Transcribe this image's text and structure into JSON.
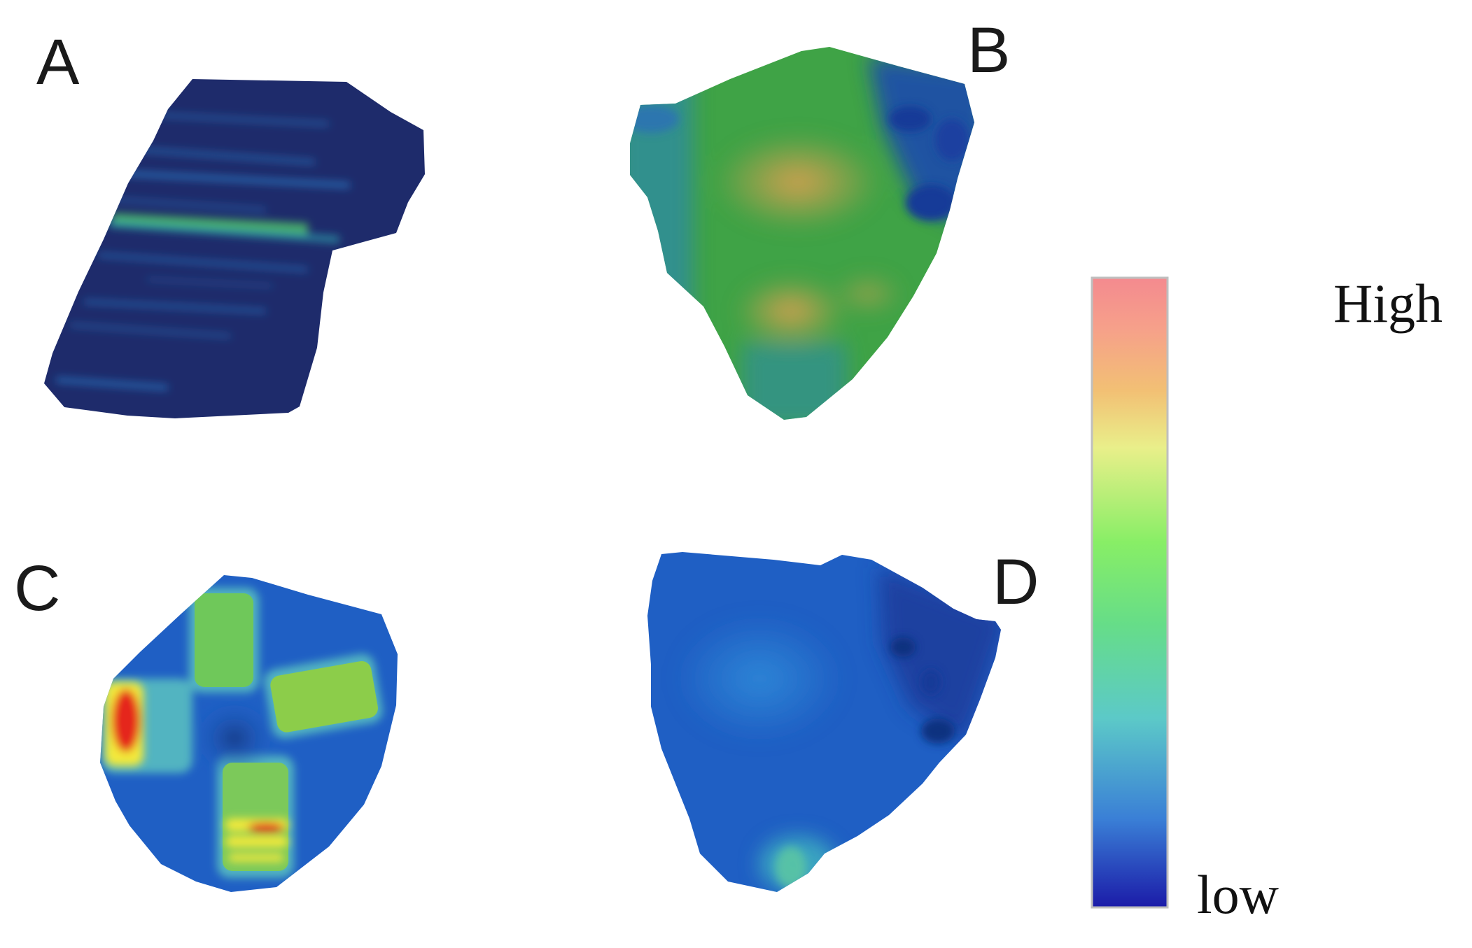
{
  "panels": [
    {
      "id": "A",
      "label": "A"
    },
    {
      "id": "B",
      "label": "B"
    },
    {
      "id": "C",
      "label": "C"
    },
    {
      "id": "D",
      "label": "D"
    }
  ],
  "color_scale": {
    "high_label": "High",
    "low_label": "low",
    "stops": [
      "#1b1ba8",
      "#3a7fd6",
      "#5cc9c8",
      "#66dd88",
      "#88ee66",
      "#e9ef8a",
      "#f2c074",
      "#f6a08a",
      "#f48a8f"
    ]
  },
  "colors": {
    "deep_navy": "#1e2b6b",
    "green": "#3fa346",
    "blue": "#1f5fc4",
    "yellow": "#f3e93a",
    "red": "#e5251b"
  }
}
